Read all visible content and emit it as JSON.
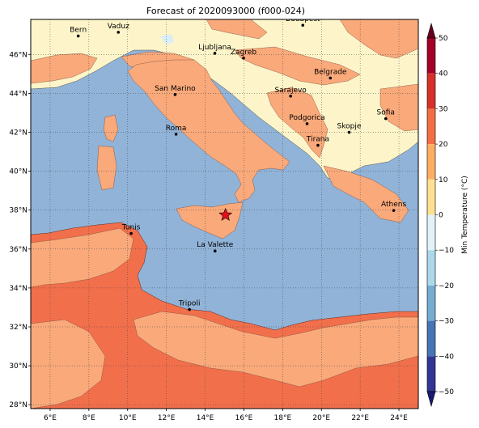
{
  "title": "Forecast of 2020093000 (f000-024)",
  "map": {
    "lon_range": [
      5,
      25
    ],
    "lat_range": [
      27.8,
      47.8
    ],
    "lon_ticks": [
      {
        "value": 6,
        "label": "6°E"
      },
      {
        "value": 8,
        "label": "8°E"
      },
      {
        "value": 10,
        "label": "10°E"
      },
      {
        "value": 12,
        "label": "12°E"
      },
      {
        "value": 14,
        "label": "14°E"
      },
      {
        "value": 16,
        "label": "16°E"
      },
      {
        "value": 18,
        "label": "18°E"
      },
      {
        "value": 20,
        "label": "20°E"
      },
      {
        "value": 22,
        "label": "22°E"
      },
      {
        "value": 24,
        "label": "24°E"
      }
    ],
    "lat_ticks": [
      {
        "value": 28,
        "label": "28°N"
      },
      {
        "value": 30,
        "label": "30°N"
      },
      {
        "value": 32,
        "label": "32°N"
      },
      {
        "value": 34,
        "label": "34°N"
      },
      {
        "value": 36,
        "label": "36°N"
      },
      {
        "value": 38,
        "label": "38°N"
      },
      {
        "value": 40,
        "label": "40°N"
      },
      {
        "value": 42,
        "label": "42°N"
      },
      {
        "value": 44,
        "label": "44°N"
      },
      {
        "value": 46,
        "label": "46°N"
      }
    ],
    "grid": true,
    "cities": [
      {
        "name": "Bern",
        "lon": 7.45,
        "lat": 46.95
      },
      {
        "name": "Vaduz",
        "lon": 9.52,
        "lat": 47.14
      },
      {
        "name": "Budapest",
        "lon": 19.04,
        "lat": 47.5
      },
      {
        "name": "Ljubljana",
        "lon": 14.5,
        "lat": 46.06
      },
      {
        "name": "Zagreb",
        "lon": 15.98,
        "lat": 45.81
      },
      {
        "name": "Belgrade",
        "lon": 20.46,
        "lat": 44.79
      },
      {
        "name": "San Marino",
        "lon": 12.45,
        "lat": 43.94
      },
      {
        "name": "Sarajevo",
        "lon": 18.41,
        "lat": 43.86
      },
      {
        "name": "Sofia",
        "lon": 23.32,
        "lat": 42.7
      },
      {
        "name": "Podgorica",
        "lon": 19.26,
        "lat": 42.44
      },
      {
        "name": "Skopje",
        "lon": 21.43,
        "lat": 42.0
      },
      {
        "name": "Roma",
        "lon": 12.5,
        "lat": 41.9
      },
      {
        "name": "Tirana",
        "lon": 19.82,
        "lat": 41.33
      },
      {
        "name": "Athens",
        "lon": 23.73,
        "lat": 37.98
      },
      {
        "name": "Tunis",
        "lon": 10.18,
        "lat": 36.8
      },
      {
        "name": "La Valette",
        "lon": 14.51,
        "lat": 35.9
      },
      {
        "name": "Tripoli",
        "lon": 13.19,
        "lat": 32.89
      }
    ],
    "marker": {
      "lon": 15.05,
      "lat": 37.75,
      "shape": "star",
      "color": "#e8101a"
    }
  },
  "colorbar": {
    "label": "Min Temperature (°C)",
    "ticks": [
      "50",
      "40",
      "30",
      "20",
      "10",
      "0",
      "−10",
      "−20",
      "−30",
      "−40",
      "−50"
    ],
    "colors": [
      "#a50026",
      "#d73027",
      "#f46d43",
      "#fdae61",
      "#fee090",
      "#e0f3f8",
      "#abd9e9",
      "#74add1",
      "#4575b4",
      "#313695"
    ],
    "top_extend_color": "#67001f",
    "bottom_extend_color": "#1a1a6e"
  },
  "field_colors": {
    "sea": "#91b3d8",
    "cool_land": "#fdf5c9",
    "mild_land": "#f9a97a",
    "warm_land": "#f26f4c",
    "cold_pocket": "#d9eef6"
  }
}
